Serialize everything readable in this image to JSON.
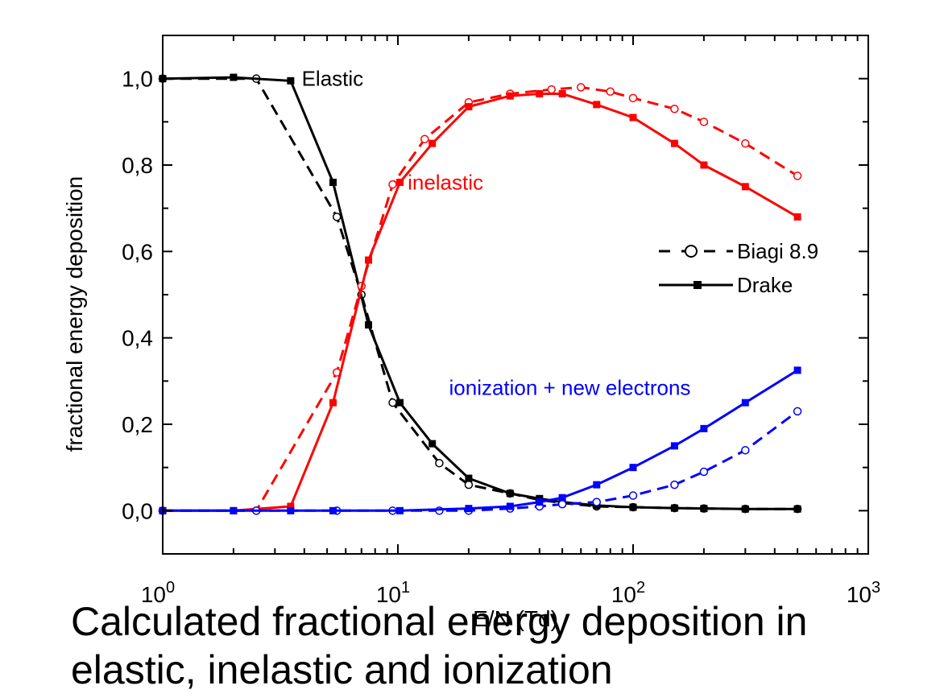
{
  "caption": {
    "line1": "Calculated fractional energy deposition in",
    "line2": "elastic, inelastic and ionization"
  },
  "chart_data": {
    "type": "line",
    "xscale": "log",
    "xlim": [
      1,
      1000
    ],
    "ylim": [
      -0.1,
      1.1
    ],
    "xlabel": "E/N (Td)",
    "ylabel": "fractional energy deposition",
    "xticks": [
      {
        "value": 1,
        "base": "10",
        "exp": "0"
      },
      {
        "value": 10,
        "base": "10",
        "exp": "1"
      },
      {
        "value": 100,
        "base": "10",
        "exp": "2"
      },
      {
        "value": 1000,
        "base": "10",
        "exp": "3"
      }
    ],
    "yticks": [
      {
        "value": 0.0,
        "label": "0,0"
      },
      {
        "value": 0.2,
        "label": "0,2"
      },
      {
        "value": 0.4,
        "label": "0,4"
      },
      {
        "value": 0.6,
        "label": "0,6"
      },
      {
        "value": 0.8,
        "label": "0,8"
      },
      {
        "value": 1.0,
        "label": "1,0"
      }
    ],
    "annotations": [
      {
        "text": "Elastic",
        "x": 3.9,
        "y": 1.0,
        "color": "#000000"
      },
      {
        "text": "inelastic",
        "x": 11.0,
        "y": 0.76,
        "color": "#ff0000"
      },
      {
        "text": "ionization + new electrons",
        "x": 16.5,
        "y": 0.285,
        "color": "#0000ff"
      }
    ],
    "legend": {
      "position": "right",
      "entries": [
        {
          "label": "Biagi 8.9",
          "style": "dashed",
          "marker": "open-circle"
        },
        {
          "label": "Drake",
          "style": "solid",
          "marker": "filled-square"
        }
      ]
    },
    "series": [
      {
        "process": "elastic",
        "source": "Biagi 8.9",
        "color": "#000000",
        "style": "dashed",
        "marker": "open-circle",
        "x": [
          1.0,
          2.5,
          5.5,
          7.0,
          9.5,
          15,
          20,
          30,
          40,
          50,
          70,
          100,
          150,
          200,
          300,
          500
        ],
        "y": [
          1.0,
          1.0,
          0.68,
          0.5,
          0.25,
          0.11,
          0.06,
          0.04,
          0.025,
          0.018,
          0.01,
          0.008,
          0.006,
          0.005,
          0.004,
          0.004
        ]
      },
      {
        "process": "elastic",
        "source": "Drake",
        "color": "#000000",
        "style": "solid",
        "marker": "filled-square",
        "x": [
          1.0,
          2.0,
          3.5,
          5.3,
          7.5,
          10.2,
          14,
          20,
          30,
          40,
          50,
          70,
          100,
          150,
          200,
          300,
          500
        ],
        "y": [
          1.0,
          1.003,
          0.995,
          0.76,
          0.43,
          0.25,
          0.155,
          0.075,
          0.04,
          0.028,
          0.02,
          0.012,
          0.008,
          0.006,
          0.005,
          0.004,
          0.004
        ]
      },
      {
        "process": "inelastic",
        "source": "Biagi 8.9",
        "color": "#ff0000",
        "style": "dashed",
        "marker": "open-circle",
        "x": [
          1.0,
          2.5,
          5.5,
          7.0,
          9.5,
          13,
          20,
          30,
          45,
          60,
          80,
          100,
          150,
          200,
          300,
          500
        ],
        "y": [
          0.0,
          0.0,
          0.32,
          0.52,
          0.755,
          0.86,
          0.945,
          0.965,
          0.975,
          0.98,
          0.97,
          0.955,
          0.93,
          0.9,
          0.85,
          0.775
        ]
      },
      {
        "process": "inelastic",
        "source": "Drake",
        "color": "#ff0000",
        "style": "solid",
        "marker": "filled-square",
        "x": [
          1.0,
          2.0,
          3.5,
          5.3,
          7.5,
          10.2,
          14,
          20,
          30,
          40,
          50,
          70,
          100,
          150,
          200,
          300,
          500
        ],
        "y": [
          0.0,
          0.0,
          0.01,
          0.25,
          0.58,
          0.76,
          0.85,
          0.935,
          0.96,
          0.965,
          0.965,
          0.94,
          0.91,
          0.85,
          0.8,
          0.75,
          0.68
        ]
      },
      {
        "process": "ionization + new electrons",
        "source": "Biagi 8.9",
        "color": "#0000ff",
        "style": "dashed",
        "marker": "open-circle",
        "x": [
          1.0,
          2.5,
          5.5,
          9.5,
          15,
          20,
          30,
          40,
          50,
          70,
          100,
          150,
          200,
          300,
          500
        ],
        "y": [
          0.0,
          0.0,
          0.0,
          0.0,
          0.0,
          0.0,
          0.005,
          0.01,
          0.015,
          0.02,
          0.035,
          0.06,
          0.09,
          0.14,
          0.23
        ]
      },
      {
        "process": "ionization + new electrons",
        "source": "Drake",
        "color": "#0000ff",
        "style": "solid",
        "marker": "filled-square",
        "x": [
          1.0,
          2.0,
          3.5,
          5.3,
          10.2,
          20,
          30,
          40,
          50,
          70,
          100,
          150,
          200,
          300,
          500
        ],
        "y": [
          0.0,
          0.0,
          0.0,
          0.0,
          0.0,
          0.005,
          0.01,
          0.02,
          0.03,
          0.06,
          0.1,
          0.15,
          0.19,
          0.25,
          0.325
        ]
      }
    ]
  }
}
